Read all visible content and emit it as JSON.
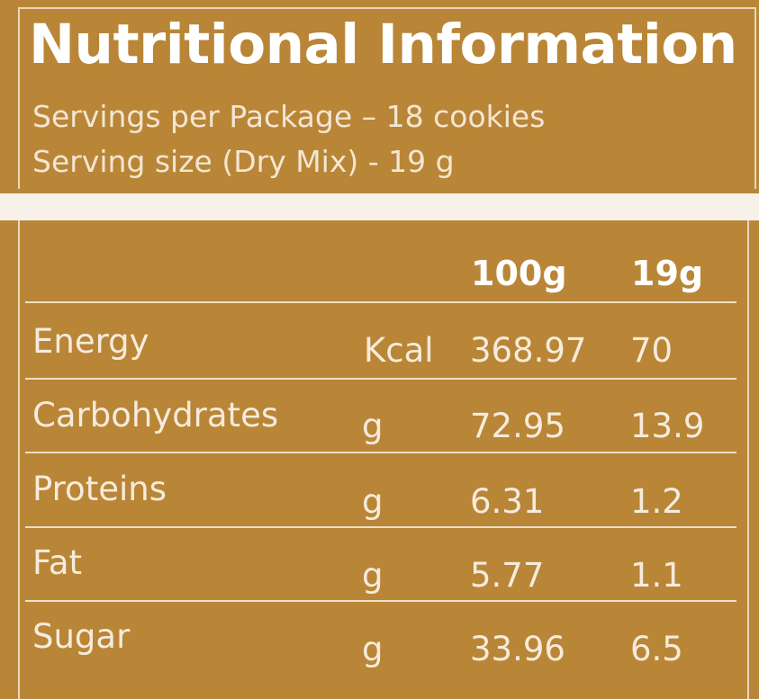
{
  "title": "Nutritional Information",
  "servings_per_package": "Servings per Package – 18 cookies",
  "serving_size": "Serving size (Dry Mix) - 19 g",
  "table": {
    "headers": [
      "100g",
      "19g"
    ],
    "rows": [
      {
        "nutrient": "Energy",
        "unit": "Kcal",
        "per_100g": "368.97",
        "per_19g": "70"
      },
      {
        "nutrient": "Carbohydrates",
        "unit": "g",
        "per_100g": "72.95",
        "per_19g": "13.9"
      },
      {
        "nutrient": "Proteins",
        "unit": "g",
        "per_100g": "6.31",
        "per_19g": "1.2"
      },
      {
        "nutrient": "Fat",
        "unit": "g",
        "per_100g": "5.77",
        "per_19g": "1.1"
      },
      {
        "nutrient": "Sugar",
        "unit": "g",
        "per_100g": "33.96",
        "per_19g": "6.5"
      }
    ]
  },
  "colors": {
    "background": "#b98637",
    "band": "#f7f1ea",
    "text": "#f6ebdc",
    "rules": "#efe0c8"
  }
}
